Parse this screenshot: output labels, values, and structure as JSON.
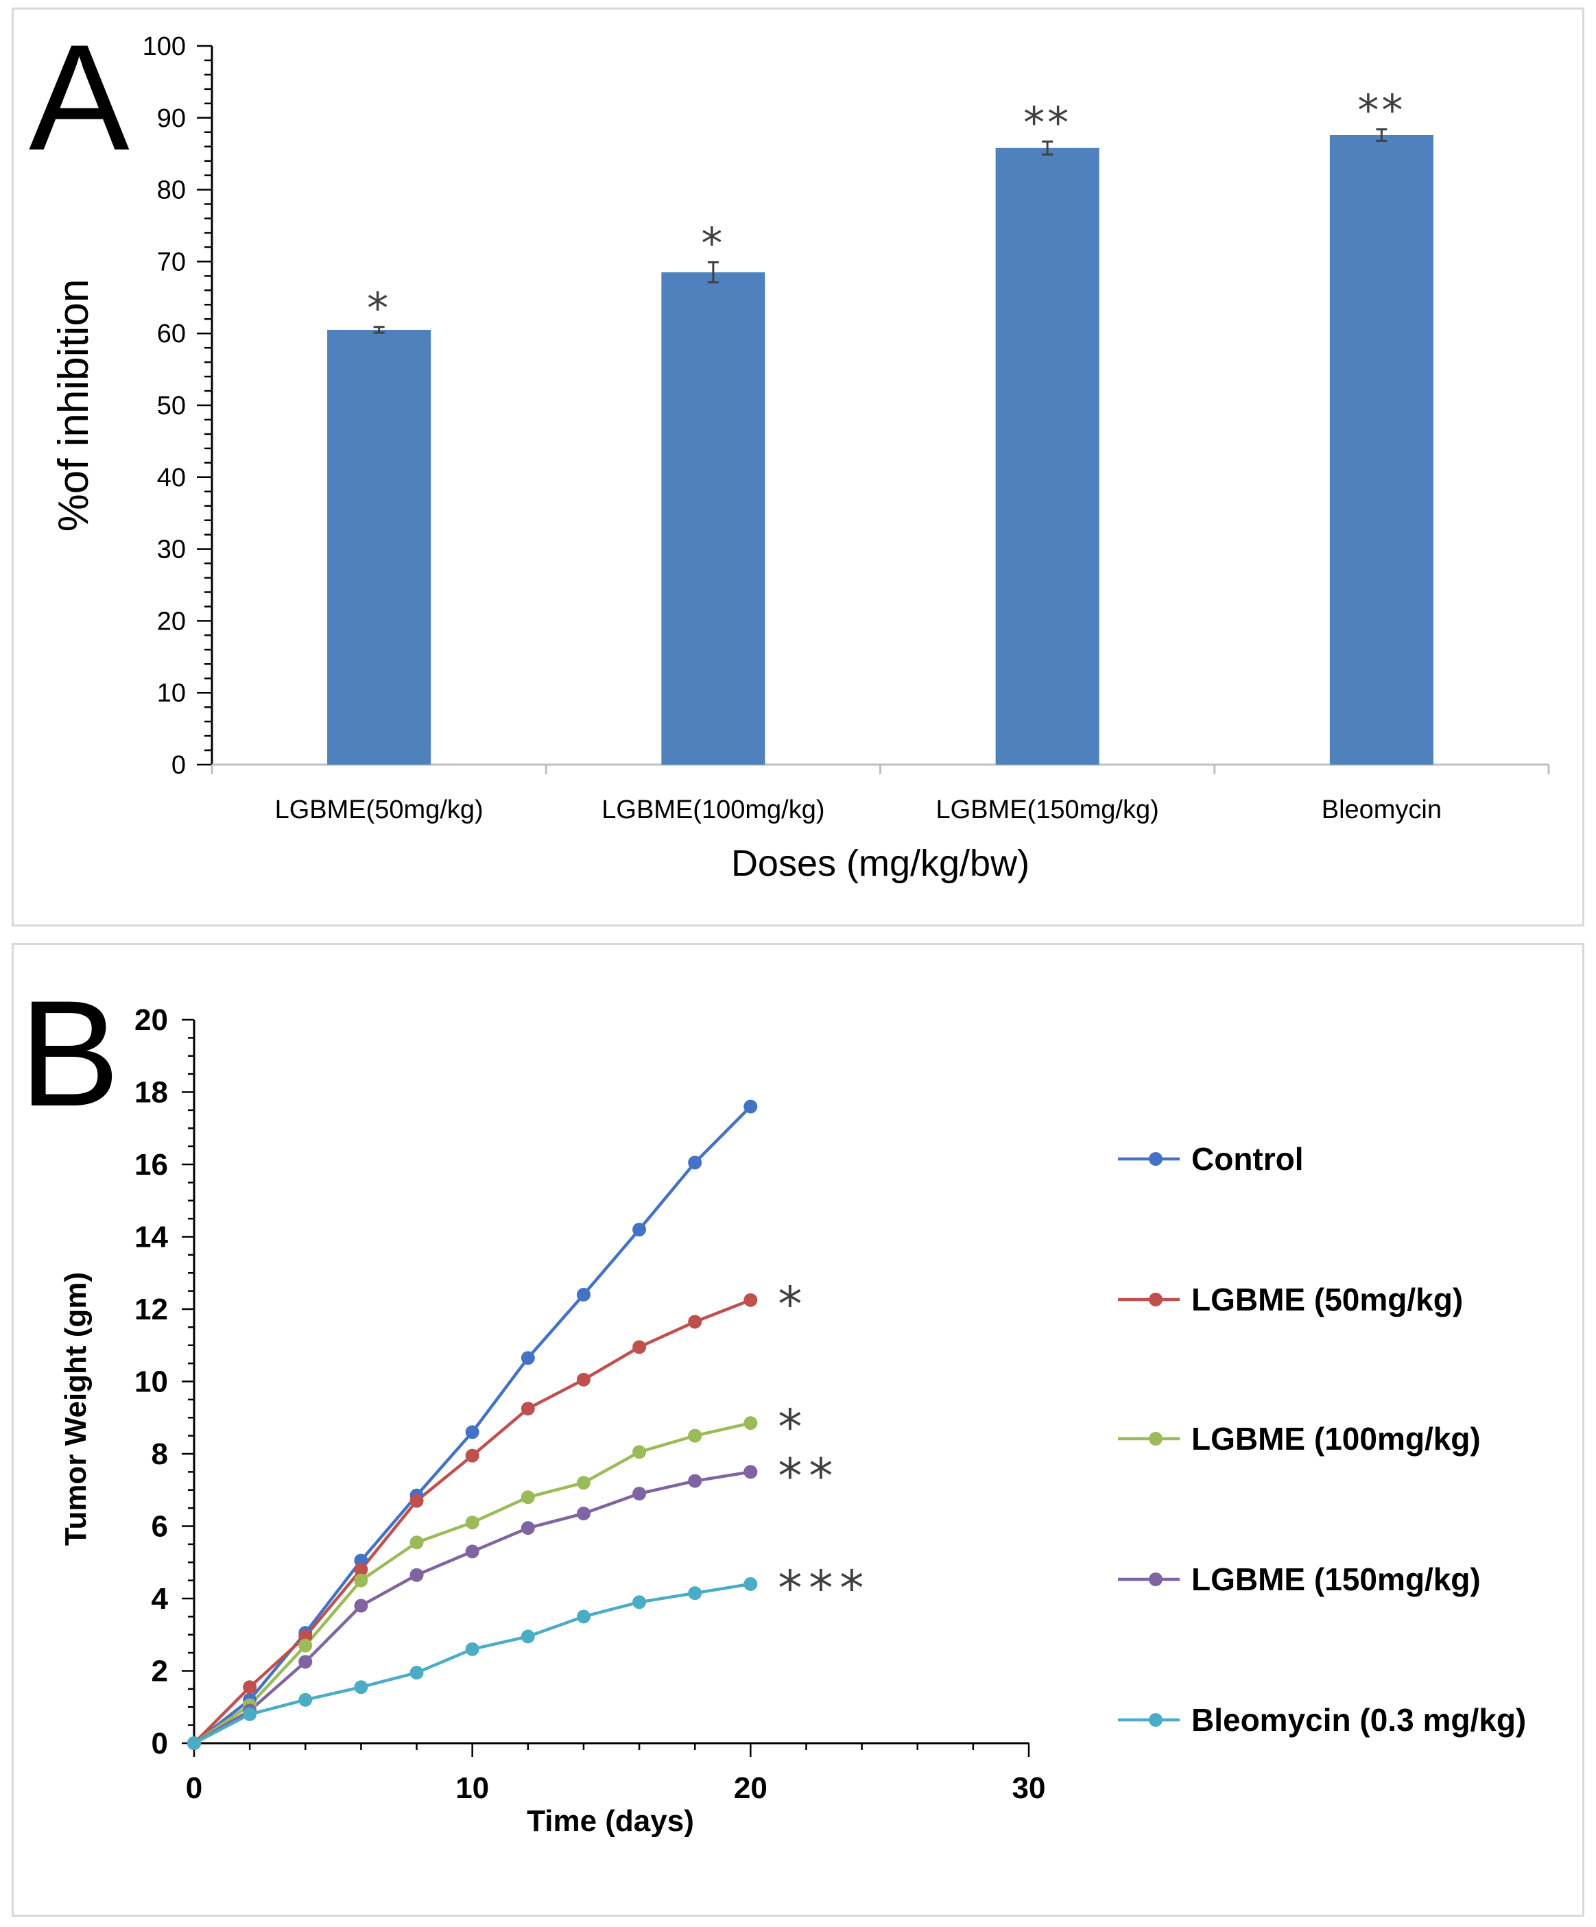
{
  "chart_data": [
    {
      "panel": "A",
      "type": "bar",
      "title": "",
      "xlabel": "Doses (mg/kg/bw)",
      "ylabel": "%of inhibition",
      "ylim": [
        0,
        100
      ],
      "yticks": [
        "0",
        "10",
        "20",
        "30",
        "40",
        "50",
        "60",
        "70",
        "80",
        "90",
        "100"
      ],
      "categories": [
        "LGBME(50mg/kg)",
        "LGBME(100mg/kg)",
        "LGBME(150mg/kg)",
        "Bleomycin"
      ],
      "values": [
        60.5,
        68.5,
        85.8,
        87.6
      ],
      "errors": [
        0.4,
        1.4,
        0.9,
        0.8
      ],
      "significance": [
        "*",
        "*",
        "**",
        "**"
      ],
      "bar_color": "#4f81bd"
    },
    {
      "panel": "B",
      "type": "line",
      "title": "",
      "xlabel": "Time (days)",
      "ylabel": "Tumor Weight (gm)",
      "xlim": [
        0,
        30
      ],
      "ylim": [
        0,
        20
      ],
      "xticks": [
        "0",
        "10",
        "20",
        "30"
      ],
      "yticks": [
        "0",
        "2",
        "4",
        "6",
        "8",
        "10",
        "12",
        "14",
        "16",
        "18",
        "20"
      ],
      "x": [
        0,
        2,
        4,
        6,
        8,
        10,
        12,
        14,
        16,
        18,
        20
      ],
      "series": [
        {
          "name": "Control",
          "color": "#4472c4",
          "significance": "",
          "values": [
            0,
            1.2,
            3.05,
            5.05,
            6.85,
            8.6,
            10.65,
            12.4,
            14.2,
            16.05,
            17.6
          ]
        },
        {
          "name": "LGBME (50mg/kg)",
          "color": "#c0504d",
          "significance": "*",
          "values": [
            0,
            1.55,
            2.95,
            4.8,
            6.7,
            7.95,
            9.25,
            10.05,
            10.95,
            11.65,
            12.25
          ]
        },
        {
          "name": "LGBME (100mg/kg)",
          "color": "#9bbb59",
          "significance": "*",
          "values": [
            0,
            1.05,
            2.7,
            4.5,
            5.55,
            6.1,
            6.8,
            7.2,
            8.05,
            8.5,
            8.85
          ]
        },
        {
          "name": "LGBME (150mg/kg)",
          "color": "#8064a2",
          "significance": "**",
          "values": [
            0,
            0.9,
            2.25,
            3.8,
            4.65,
            5.3,
            5.95,
            6.35,
            6.9,
            7.25,
            7.5
          ]
        },
        {
          "name": "Bleomycin (0.3 mg/kg)",
          "color": "#4bacc6",
          "significance": "***",
          "values": [
            0,
            0.8,
            1.2,
            1.55,
            1.95,
            2.6,
            2.95,
            3.5,
            3.9,
            4.15,
            4.4
          ]
        }
      ]
    }
  ],
  "panel_labels": {
    "a": "A",
    "b": "B"
  }
}
